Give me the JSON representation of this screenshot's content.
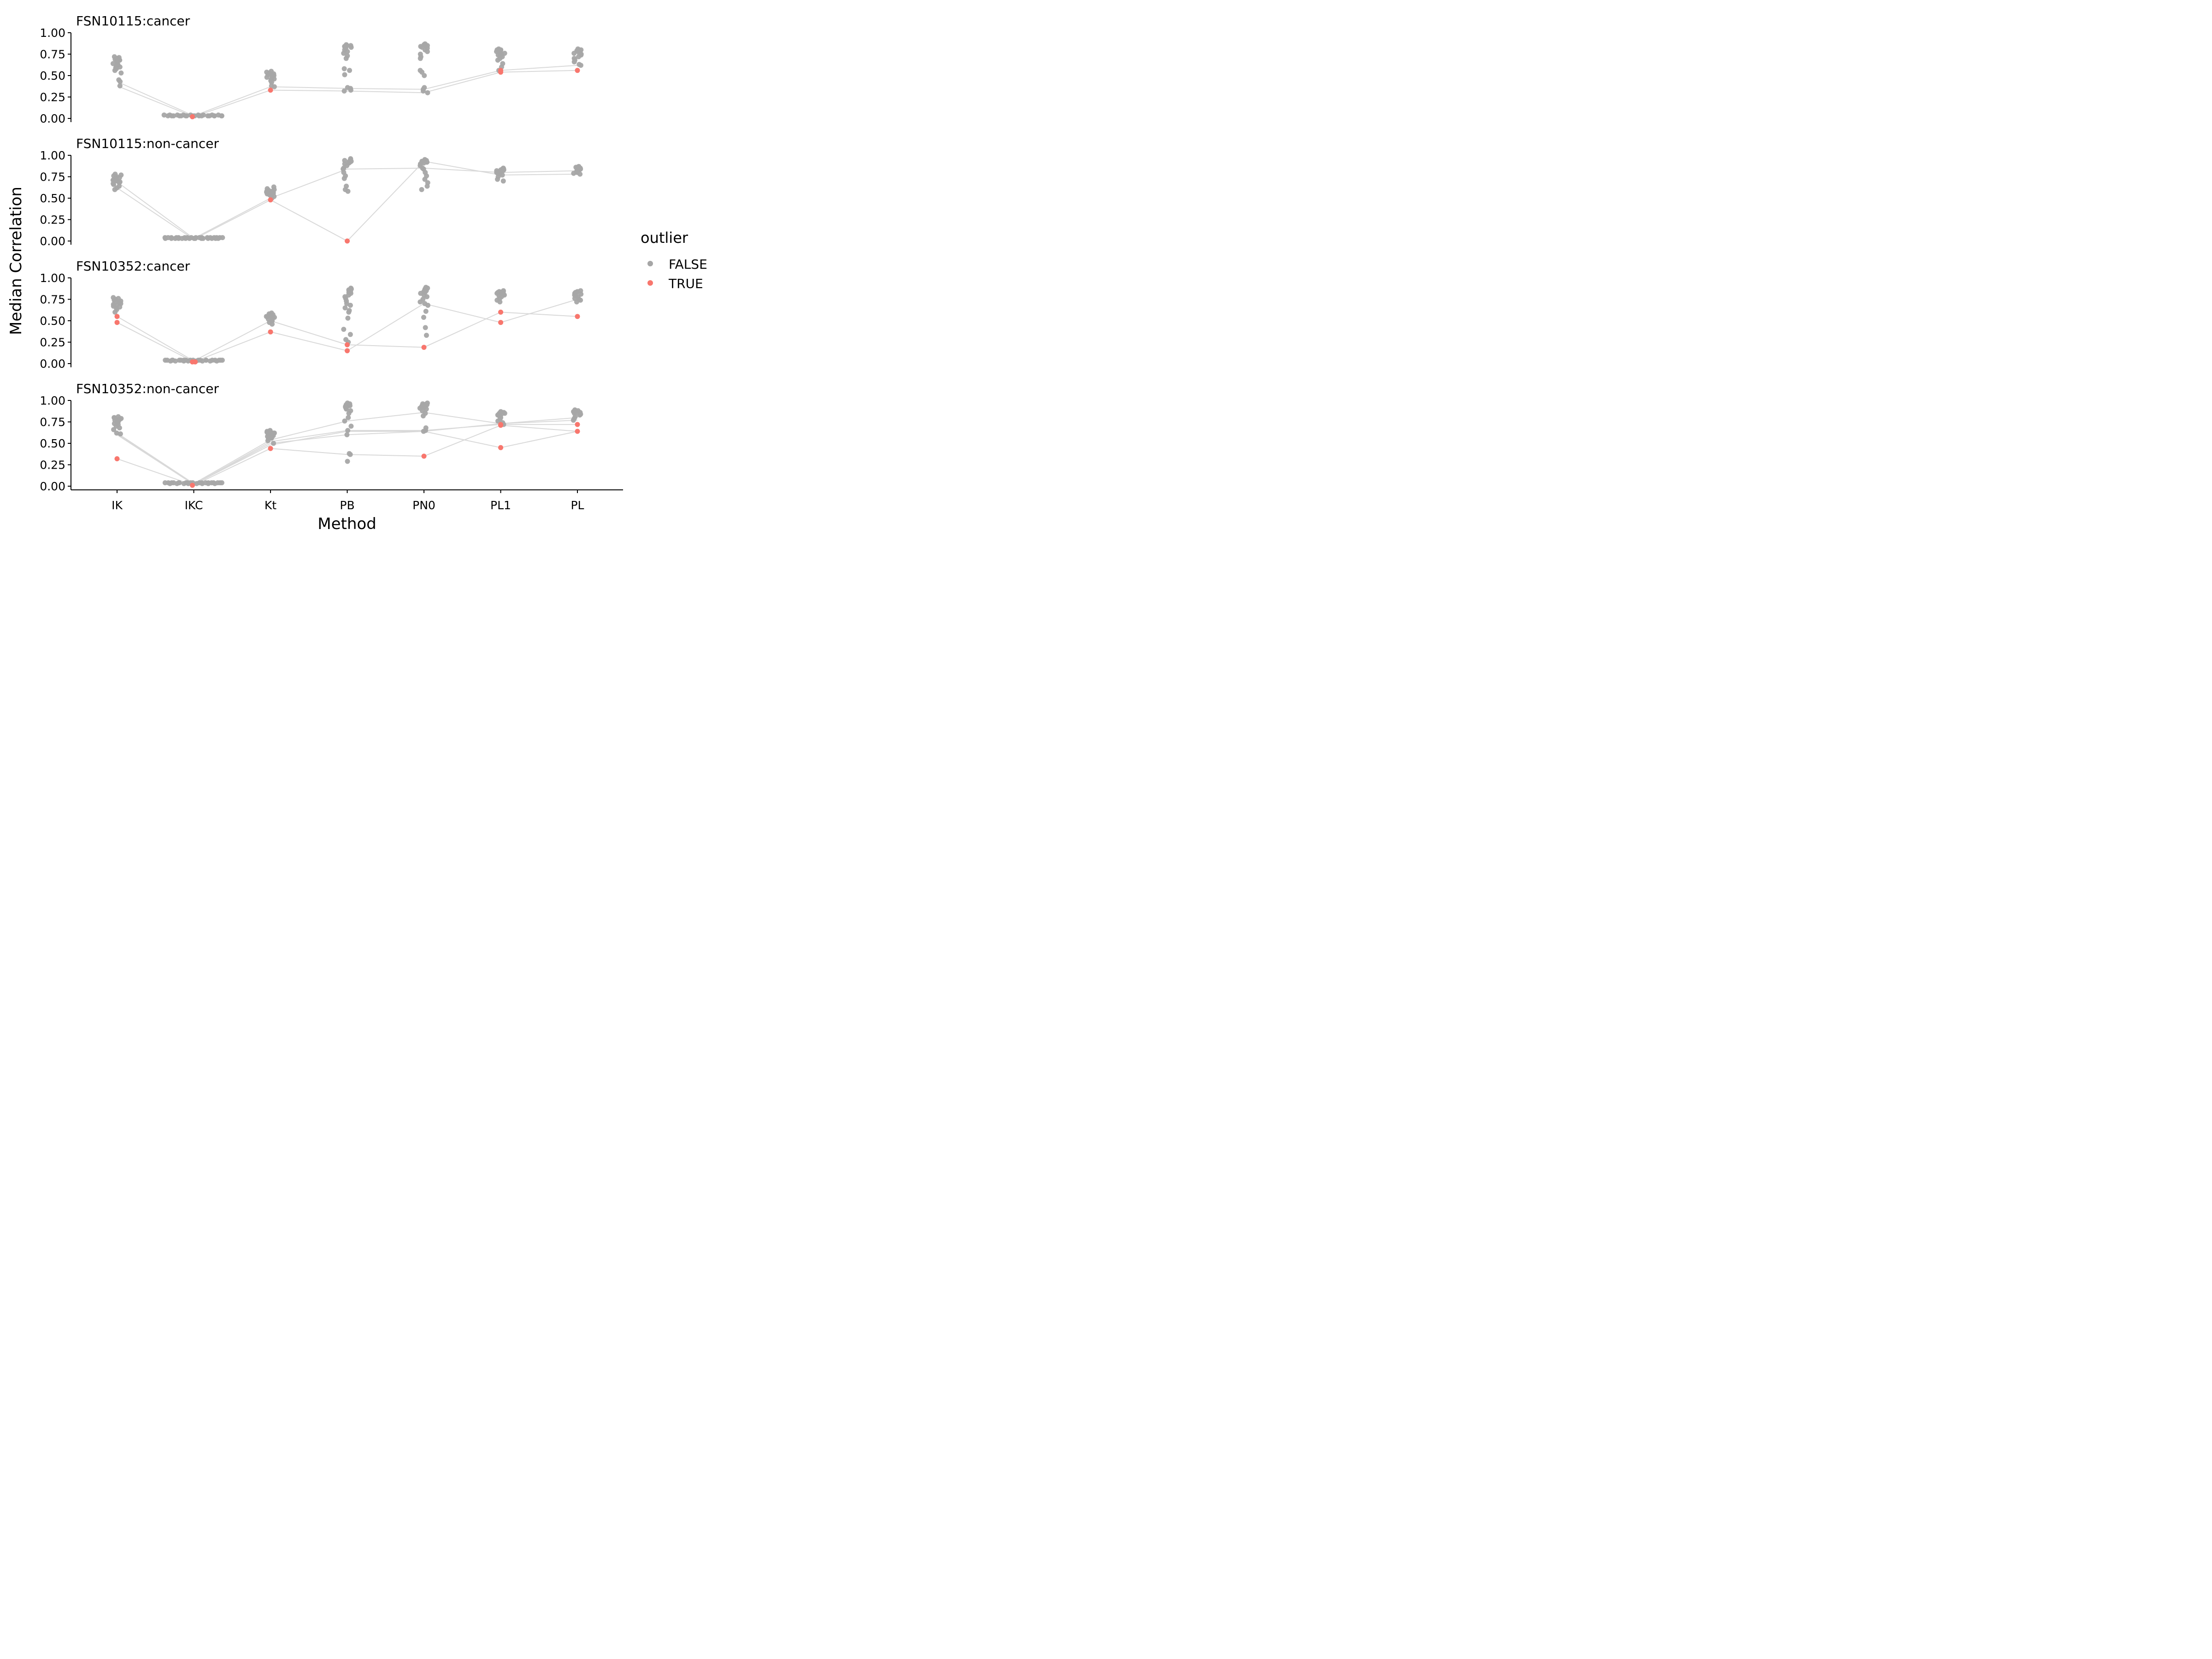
{
  "chart_data": {
    "type": "scatter",
    "xlabel": "Method",
    "ylabel": "Median Correlation",
    "categories": [
      "IK",
      "IKC",
      "Kt",
      "PB",
      "PN0",
      "PL1",
      "PL"
    ],
    "ylim": [
      0,
      1
    ],
    "yticks": [
      "0.00",
      "0.25",
      "0.50",
      "0.75",
      "1.00"
    ],
    "legend": {
      "title": "outlier",
      "position": "right",
      "entries": [
        {
          "label": "FALSE",
          "color": "#A6A6A6"
        },
        {
          "label": "TRUE",
          "color": "#F8766D"
        }
      ]
    },
    "colors": {
      "FALSE": "#A6A6A6",
      "TRUE": "#F8766D",
      "line": "#D9D9D9"
    },
    "panels": [
      {
        "title": "FSN10115:cancer",
        "points": {
          "IK": {
            "false": [
              0.72,
              0.71,
              0.7,
              0.7,
              0.69,
              0.68,
              0.68,
              0.67,
              0.66,
              0.65,
              0.64,
              0.63,
              0.62,
              0.61,
              0.6,
              0.59,
              0.58,
              0.56,
              0.53,
              0.45,
              0.43,
              0.38
            ],
            "true": []
          },
          "IKC": {
            "false": [
              0.04,
              0.03,
              0.04,
              0.03,
              0.03,
              0.04,
              0.03,
              0.03,
              0.04,
              0.03,
              0.03,
              0.04,
              0.03,
              0.03,
              0.04,
              0.03,
              0.03,
              0.04,
              0.03,
              0.03,
              0.04,
              0.03,
              0.03,
              0.04,
              0.03,
              0.03
            ],
            "true": [
              0.02
            ]
          },
          "Kt": {
            "false": [
              0.55,
              0.54,
              0.53,
              0.52,
              0.51,
              0.5,
              0.5,
              0.49,
              0.48,
              0.47,
              0.46,
              0.45,
              0.44,
              0.42,
              0.38,
              0.37
            ],
            "true": [
              0.33
            ]
          },
          "PB": {
            "false": [
              0.86,
              0.85,
              0.85,
              0.84,
              0.84,
              0.83,
              0.82,
              0.8,
              0.78,
              0.76,
              0.73,
              0.7,
              0.58,
              0.56,
              0.51,
              0.36,
              0.35,
              0.33,
              0.32
            ],
            "true": []
          },
          "PN0": {
            "false": [
              0.87,
              0.86,
              0.85,
              0.85,
              0.84,
              0.83,
              0.82,
              0.8,
              0.78,
              0.75,
              0.72,
              0.7,
              0.56,
              0.54,
              0.5,
              0.36,
              0.34,
              0.32,
              0.3
            ],
            "true": []
          },
          "PL1": {
            "false": [
              0.81,
              0.8,
              0.8,
              0.79,
              0.79,
              0.78,
              0.78,
              0.77,
              0.76,
              0.75,
              0.74,
              0.73,
              0.72,
              0.7,
              0.68,
              0.64,
              0.6,
              0.56
            ],
            "true": [
              0.56,
              0.54
            ]
          },
          "PL": {
            "false": [
              0.81,
              0.8,
              0.8,
              0.79,
              0.79,
              0.78,
              0.77,
              0.76,
              0.75,
              0.74,
              0.72,
              0.7,
              0.68,
              0.66,
              0.63,
              0.62
            ],
            "true": [
              0.56
            ]
          }
        },
        "lines": [
          [
            0.43,
            0.03,
            0.37,
            0.35,
            0.34,
            0.56,
            0.62
          ],
          [
            0.38,
            0.02,
            0.33,
            0.32,
            0.3,
            0.54,
            0.56
          ]
        ]
      },
      {
        "title": "FSN10115:non-cancer",
        "points": {
          "IK": {
            "false": [
              0.78,
              0.77,
              0.76,
              0.75,
              0.74,
              0.73,
              0.73,
              0.72,
              0.72,
              0.71,
              0.71,
              0.7,
              0.7,
              0.69,
              0.68,
              0.67,
              0.66,
              0.64,
              0.62,
              0.6
            ],
            "true": []
          },
          "IKC": {
            "false": [
              0.04,
              0.03,
              0.04,
              0.03,
              0.04,
              0.03,
              0.04,
              0.03,
              0.04,
              0.03,
              0.04,
              0.03,
              0.04,
              0.03,
              0.04,
              0.03,
              0.04,
              0.03,
              0.04,
              0.03,
              0.04,
              0.03,
              0.04,
              0.03,
              0.04,
              0.03,
              0.04,
              0.03,
              0.04,
              0.03,
              0.04,
              0.04
            ],
            "true": []
          },
          "Kt": {
            "false": [
              0.63,
              0.61,
              0.6,
              0.59,
              0.58,
              0.58,
              0.57,
              0.57,
              0.56,
              0.56,
              0.55,
              0.55,
              0.54,
              0.53,
              0.52,
              0.5
            ],
            "true": [
              0.48
            ]
          },
          "PB": {
            "false": [
              0.96,
              0.95,
              0.94,
              0.93,
              0.93,
              0.92,
              0.91,
              0.9,
              0.88,
              0.85,
              0.84,
              0.8,
              0.76,
              0.73,
              0.64,
              0.6,
              0.58
            ],
            "true": [
              0.0
            ]
          },
          "PN0": {
            "false": [
              0.95,
              0.94,
              0.94,
              0.93,
              0.93,
              0.92,
              0.92,
              0.91,
              0.9,
              0.88,
              0.85,
              0.84,
              0.8,
              0.76,
              0.72,
              0.68,
              0.64,
              0.6
            ],
            "true": []
          },
          "PL1": {
            "false": [
              0.85,
              0.84,
              0.84,
              0.83,
              0.83,
              0.82,
              0.82,
              0.81,
              0.81,
              0.8,
              0.79,
              0.78,
              0.77,
              0.75,
              0.72,
              0.7
            ],
            "true": []
          },
          "PL": {
            "false": [
              0.87,
              0.86,
              0.86,
              0.85,
              0.85,
              0.84,
              0.84,
              0.83,
              0.83,
              0.82,
              0.81,
              0.8,
              0.79,
              0.78
            ],
            "true": []
          }
        },
        "lines": [
          [
            0.69,
            0.03,
            0.5,
            0.84,
            0.85,
            0.8,
            0.82
          ],
          [
            0.62,
            0.02,
            0.48,
            0.0,
            0.93,
            0.77,
            0.78
          ]
        ]
      },
      {
        "title": "FSN10352:cancer",
        "points": {
          "IK": {
            "false": [
              0.77,
              0.76,
              0.75,
              0.74,
              0.73,
              0.72,
              0.71,
              0.71,
              0.7,
              0.69,
              0.68,
              0.67,
              0.66,
              0.65,
              0.63,
              0.6
            ],
            "true": [
              0.55,
              0.48
            ]
          },
          "IKC": {
            "false": [
              0.04,
              0.04,
              0.03,
              0.04,
              0.04,
              0.03,
              0.04,
              0.04,
              0.03,
              0.04,
              0.04,
              0.03,
              0.04,
              0.04,
              0.03,
              0.04,
              0.04,
              0.03,
              0.04,
              0.04,
              0.03,
              0.04,
              0.04,
              0.03,
              0.04,
              0.04,
              0.04
            ],
            "true": [
              0.02,
              0.02
            ]
          },
          "Kt": {
            "false": [
              0.59,
              0.58,
              0.57,
              0.56,
              0.56,
              0.55,
              0.55,
              0.54,
              0.53,
              0.52,
              0.51,
              0.5,
              0.48,
              0.46
            ],
            "true": [
              0.37
            ]
          },
          "PB": {
            "false": [
              0.88,
              0.87,
              0.86,
              0.85,
              0.84,
              0.83,
              0.82,
              0.8,
              0.78,
              0.76,
              0.73,
              0.7,
              0.68,
              0.65,
              0.62,
              0.6,
              0.53,
              0.4,
              0.34,
              0.28,
              0.25
            ],
            "true": [
              0.22,
              0.15
            ]
          },
          "PN0": {
            "false": [
              0.89,
              0.88,
              0.87,
              0.86,
              0.85,
              0.84,
              0.83,
              0.82,
              0.8,
              0.78,
              0.75,
              0.72,
              0.7,
              0.68,
              0.61,
              0.54,
              0.42,
              0.33
            ],
            "true": [
              0.19
            ]
          },
          "PL1": {
            "false": [
              0.85,
              0.84,
              0.84,
              0.83,
              0.83,
              0.82,
              0.81,
              0.8,
              0.79,
              0.78,
              0.76,
              0.74,
              0.72
            ],
            "true": [
              0.6,
              0.48
            ]
          },
          "PL": {
            "false": [
              0.85,
              0.84,
              0.83,
              0.83,
              0.82,
              0.81,
              0.8,
              0.79,
              0.78,
              0.76,
              0.75,
              0.74,
              0.72
            ],
            "true": [
              0.55
            ]
          }
        },
        "lines": [
          [
            0.55,
            0.03,
            0.5,
            0.22,
            0.19,
            0.6,
            0.55
          ],
          [
            0.48,
            0.02,
            0.37,
            0.15,
            0.7,
            0.48,
            0.75
          ]
        ]
      },
      {
        "title": "FSN10352:non-cancer",
        "points": {
          "IK": {
            "false": [
              0.81,
              0.8,
              0.8,
              0.79,
              0.78,
              0.78,
              0.77,
              0.76,
              0.76,
              0.75,
              0.74,
              0.73,
              0.72,
              0.7,
              0.68,
              0.66,
              0.62,
              0.61
            ],
            "true": [
              0.32
            ]
          },
          "IKC": {
            "false": [
              0.04,
              0.04,
              0.03,
              0.04,
              0.04,
              0.03,
              0.04,
              0.04,
              0.03,
              0.04,
              0.04,
              0.03,
              0.04,
              0.04,
              0.03,
              0.04,
              0.04,
              0.03,
              0.04,
              0.04,
              0.03,
              0.04,
              0.04,
              0.03,
              0.04,
              0.04,
              0.04
            ],
            "true": [
              0.01
            ]
          },
          "Kt": {
            "false": [
              0.65,
              0.64,
              0.64,
              0.63,
              0.63,
              0.62,
              0.62,
              0.61,
              0.61,
              0.6,
              0.6,
              0.59,
              0.58,
              0.57,
              0.56,
              0.55,
              0.53,
              0.5
            ],
            "true": [
              0.44
            ]
          },
          "PB": {
            "false": [
              0.97,
              0.96,
              0.95,
              0.95,
              0.94,
              0.94,
              0.93,
              0.93,
              0.92,
              0.92,
              0.91,
              0.9,
              0.88,
              0.85,
              0.8,
              0.76,
              0.7,
              0.65,
              0.6,
              0.38,
              0.37,
              0.29
            ],
            "true": []
          },
          "PN0": {
            "false": [
              0.97,
              0.96,
              0.96,
              0.95,
              0.95,
              0.94,
              0.94,
              0.93,
              0.93,
              0.92,
              0.92,
              0.91,
              0.9,
              0.88,
              0.85,
              0.82,
              0.68,
              0.65,
              0.64
            ],
            "true": [
              0.35
            ]
          },
          "PL1": {
            "false": [
              0.87,
              0.86,
              0.86,
              0.85,
              0.85,
              0.84,
              0.84,
              0.83,
              0.82,
              0.81,
              0.8,
              0.78,
              0.76,
              0.74,
              0.72
            ],
            "true": [
              0.72,
              0.71,
              0.45
            ]
          },
          "PL": {
            "false": [
              0.89,
              0.88,
              0.88,
              0.87,
              0.87,
              0.86,
              0.86,
              0.85,
              0.84,
              0.83,
              0.81,
              0.79,
              0.77
            ],
            "true": [
              0.72,
              0.64
            ]
          }
        },
        "lines": [
          [
            0.62,
            0.03,
            0.54,
            0.76,
            0.86,
            0.73,
            0.8
          ],
          [
            0.61,
            0.02,
            0.52,
            0.65,
            0.65,
            0.72,
            0.72
          ],
          [
            0.61,
            0.02,
            0.5,
            0.6,
            0.64,
            0.73,
            0.77
          ],
          [
            0.32,
            0.01,
            0.44,
            0.37,
            0.35,
            0.71,
            0.64
          ],
          [
            0.6,
            0.02,
            0.48,
            0.64,
            0.64,
            0.45,
            0.64
          ]
        ]
      }
    ]
  }
}
